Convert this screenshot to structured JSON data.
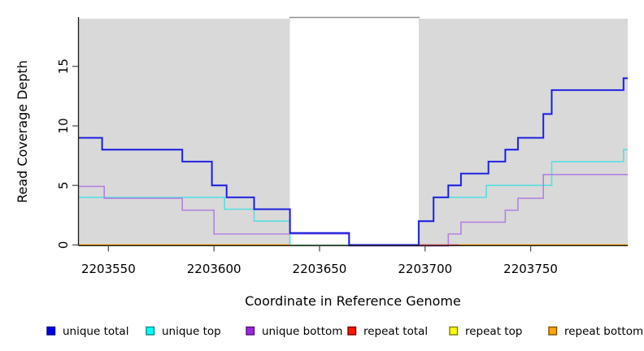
{
  "chart_data": {
    "type": "line",
    "subtype": "step-coverage-plot",
    "title": "",
    "xlabel": "Coordinate in Reference Genome",
    "ylabel": "Read Coverage Depth",
    "x_range": [
      2203536,
      2203796
    ],
    "y_range": [
      0,
      19
    ],
    "grid": false,
    "legend_position": "bottom",
    "x_ticks": [
      {
        "value": 2203550,
        "label": "2203550"
      },
      {
        "value": 2203600,
        "label": "2203600"
      },
      {
        "value": 2203650,
        "label": "2203650"
      },
      {
        "value": 2203700,
        "label": "2203700"
      },
      {
        "value": 2203750,
        "label": "2203750"
      }
    ],
    "y_ticks": [
      {
        "value": 0,
        "label": "0"
      },
      {
        "value": 5,
        "label": "5"
      },
      {
        "value": 10,
        "label": "10"
      },
      {
        "value": 15,
        "label": "15"
      }
    ],
    "background_regions": [
      {
        "name": "covered-left",
        "from": 2203536,
        "to": 2203636,
        "fill": "#d9d9d9"
      },
      {
        "name": "uncovered-gap",
        "from": 2203636,
        "to": 2203697,
        "fill": "#ffffff",
        "top_border": "#909090"
      },
      {
        "name": "covered-right",
        "from": 2203697,
        "to": 2203796,
        "fill": "#d9d9d9"
      }
    ],
    "series": [
      {
        "name": "unique top",
        "color": "#58dee2",
        "steps": [
          [
            2203536,
            4
          ],
          [
            2203605,
            3
          ],
          [
            2203619,
            2
          ],
          [
            2203636,
            0
          ],
          [
            2203697,
            2
          ],
          [
            2203704,
            4
          ],
          [
            2203729,
            5
          ],
          [
            2203760,
            7
          ],
          [
            2203794,
            8
          ]
        ]
      },
      {
        "name": "unique bottom",
        "color": "#b382de",
        "steps": [
          [
            2203536,
            5
          ],
          [
            2203548,
            4
          ],
          [
            2203585,
            3
          ],
          [
            2203600,
            1
          ],
          [
            2203664,
            0
          ],
          [
            2203711,
            1
          ],
          [
            2203717,
            2
          ],
          [
            2203738,
            3
          ],
          [
            2203744,
            4
          ],
          [
            2203756,
            6
          ]
        ]
      },
      {
        "name": "unique total",
        "color": "#1c1cd9",
        "halo_color": "#9ba4ef",
        "steps": [
          [
            2203536,
            9
          ],
          [
            2203547,
            8
          ],
          [
            2203585,
            7
          ],
          [
            2203599,
            5
          ],
          [
            2203606,
            4
          ],
          [
            2203619,
            3
          ],
          [
            2203636,
            1
          ],
          [
            2203664,
            0
          ],
          [
            2203697,
            2
          ],
          [
            2203704,
            4
          ],
          [
            2203711,
            5
          ],
          [
            2203717,
            6
          ],
          [
            2203730,
            7
          ],
          [
            2203738,
            8
          ],
          [
            2203744,
            9
          ],
          [
            2203756,
            11
          ],
          [
            2203760,
            13
          ],
          [
            2203794,
            14
          ]
        ]
      }
    ],
    "baseline_segments": [
      {
        "name": "repeat bottom left",
        "color": "#ff9e00",
        "from": 2203536,
        "to": 2203636,
        "value": 0,
        "layer": "top"
      },
      {
        "name": "repeat top over unique top blend",
        "color": "#a4d2a4",
        "from": 2203636,
        "to": 2203664,
        "value": 0,
        "layer": "mid"
      },
      {
        "name": "repeat total",
        "color": "#e25468",
        "from": 2203697,
        "to": 2203716,
        "value": 0,
        "layer": "mid2"
      },
      {
        "name": "repeat bottom right",
        "color": "#ff9e00",
        "from": 2203716,
        "to": 2203796,
        "value": 0,
        "layer": "top"
      }
    ],
    "legend": [
      {
        "label": "unique total",
        "fill": "#0000e6",
        "border": "#00008b"
      },
      {
        "label": "unique top",
        "fill": "#00ffff",
        "border": "#008b8b"
      },
      {
        "label": "unique bottom",
        "fill": "#9d25dc",
        "border": "#56127e"
      },
      {
        "label": "repeat total",
        "fill": "#ff1500",
        "border": "#7d0000"
      },
      {
        "label": "repeat top",
        "fill": "#ffff00",
        "border": "#7e7e00"
      },
      {
        "label": "repeat bottom",
        "fill": "#ffa500",
        "border": "#7d4f00"
      }
    ]
  }
}
